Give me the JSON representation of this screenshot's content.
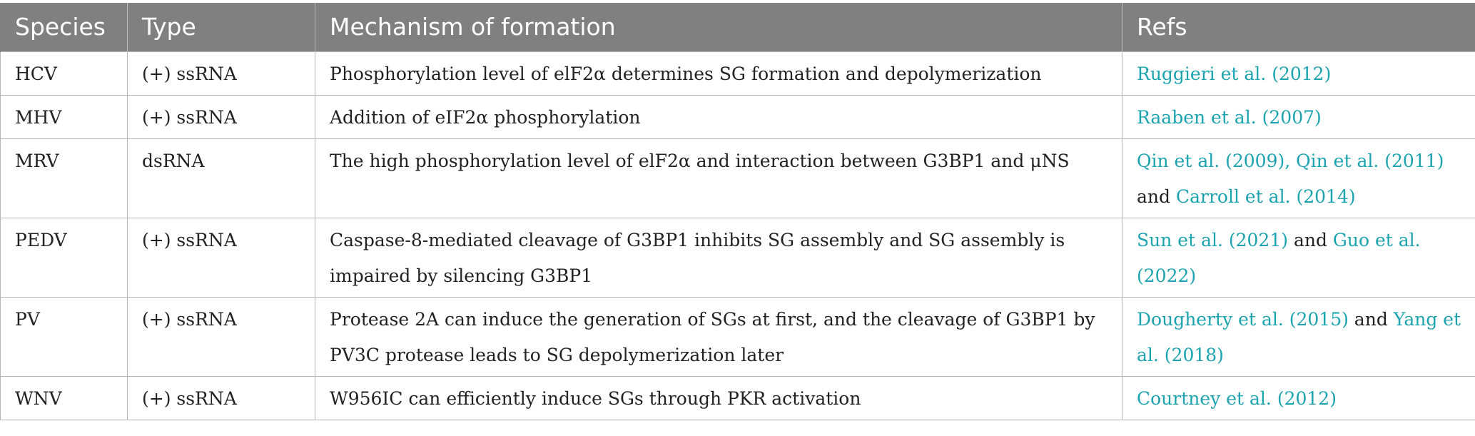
{
  "table": {
    "headers": [
      "Species",
      "Type",
      "Mechanism of formation",
      "Refs"
    ],
    "rows": [
      {
        "species": "HCV",
        "type": "(+) ssRNA",
        "mechanism": "Phosphorylation level of elF2α determines SG formation and depolymerization",
        "refs": [
          {
            "text": "Ruggieri et al. (2012)",
            "link": true
          }
        ]
      },
      {
        "species": "MHV",
        "type": "(+) ssRNA",
        "mechanism": "Addition of eIF2α phosphorylation",
        "refs": [
          {
            "text": "Raaben et al. (2007)",
            "link": true
          }
        ]
      },
      {
        "species": "MRV",
        "type": "dsRNA",
        "mechanism": "The high phosphorylation level of elF2α and interaction between G3BP1 and μNS",
        "refs": [
          {
            "text": "Qin et al. (2009), Qin et al. (2011)",
            "link": true
          },
          {
            "text": " and ",
            "link": false
          },
          {
            "text": "Carroll et al. (2014)",
            "link": true
          }
        ]
      },
      {
        "species": "PEDV",
        "type": "(+) ssRNA",
        "mechanism": "Caspase-8-mediated cleavage of G3BP1 inhibits SG assembly and SG assembly is impaired by silencing G3BP1",
        "refs": [
          {
            "text": "Sun et al. (2021)",
            "link": true
          },
          {
            "text": " and ",
            "link": false
          },
          {
            "text": "Guo et al. (2022)",
            "link": true
          }
        ]
      },
      {
        "species": "PV",
        "type": "(+) ssRNA",
        "mechanism": "Protease 2A can induce the generation of SGs at first, and the cleavage of G3BP1 by PV3C protease leads to SG depolymerization later",
        "refs": [
          {
            "text": "Dougherty et al. (2015)",
            "link": true
          },
          {
            "text": " and ",
            "link": false
          },
          {
            "text": "Yang et al. (2018)",
            "link": true
          }
        ]
      },
      {
        "species": "WNV",
        "type": "(+) ssRNA",
        "mechanism": "W956IC can efficiently induce SGs through PKR activation",
        "refs": [
          {
            "text": "Courtney et al. (2012)",
            "link": true
          }
        ]
      }
    ]
  },
  "colors": {
    "header_bg": "#808080",
    "header_text": "#ffffff",
    "link": "#1ba3b0",
    "border": "#b4b4b4"
  }
}
